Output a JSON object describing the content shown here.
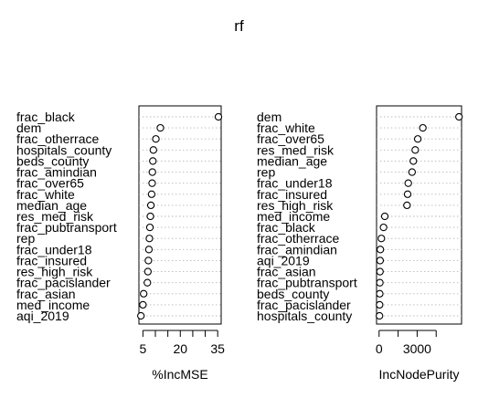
{
  "chart_data": [
    {
      "type": "scatter",
      "title": "rf",
      "xlabel": "%IncMSE",
      "ylabel": "",
      "xlim": [
        3.4,
        36.4
      ],
      "xticks": [
        5,
        20,
        35
      ],
      "xtick_labels": [
        "5",
        "20",
        "35"
      ],
      "minor_xticks": [
        10,
        15,
        25,
        30
      ],
      "grid": "dotted horizontal lines per variable",
      "categories": [
        "frac_black",
        "dem",
        "frac_otherrace",
        "hospitals_county",
        "beds_county",
        "frac_amindian",
        "frac_over65",
        "frac_white",
        "median_age",
        "res_med_risk",
        "frac_pubtransport",
        "rep",
        "frac_under18",
        "frac_insured",
        "res_high_risk",
        "frac_pacislander",
        "frac_asian",
        "med_income",
        "aqi_2019"
      ],
      "values": [
        35.3,
        12.0,
        10.2,
        9.2,
        9.0,
        8.8,
        8.7,
        8.5,
        8.2,
        8.0,
        7.8,
        7.6,
        7.4,
        7.2,
        7.0,
        6.8,
        5.3,
        5.0,
        4.2
      ]
    },
    {
      "type": "scatter",
      "title": "",
      "xlabel": "IncNodePurity",
      "ylabel": "",
      "xlim": [
        -200,
        6500
      ],
      "xticks": [
        0,
        3000
      ],
      "xtick_labels": [
        "0",
        "3000"
      ],
      "minor_xticks": [
        1500,
        4500
      ],
      "grid": "dotted horizontal lines per variable",
      "categories": [
        "dem",
        "frac_white",
        "frac_over65",
        "res_med_risk",
        "median_age",
        "rep",
        "frac_under18",
        "frac_insured",
        "res_high_risk",
        "med_income",
        "frac_black",
        "frac_otherrace",
        "frac_amindian",
        "aqi_2019",
        "frac_asian",
        "frac_pubtransport",
        "beds_county",
        "frac_pacislander",
        "hospitals_county"
      ],
      "values": [
        6300,
        3450,
        3050,
        2850,
        2700,
        2600,
        2300,
        2250,
        2200,
        450,
        350,
        180,
        100,
        80,
        70,
        60,
        50,
        40,
        30
      ]
    }
  ]
}
